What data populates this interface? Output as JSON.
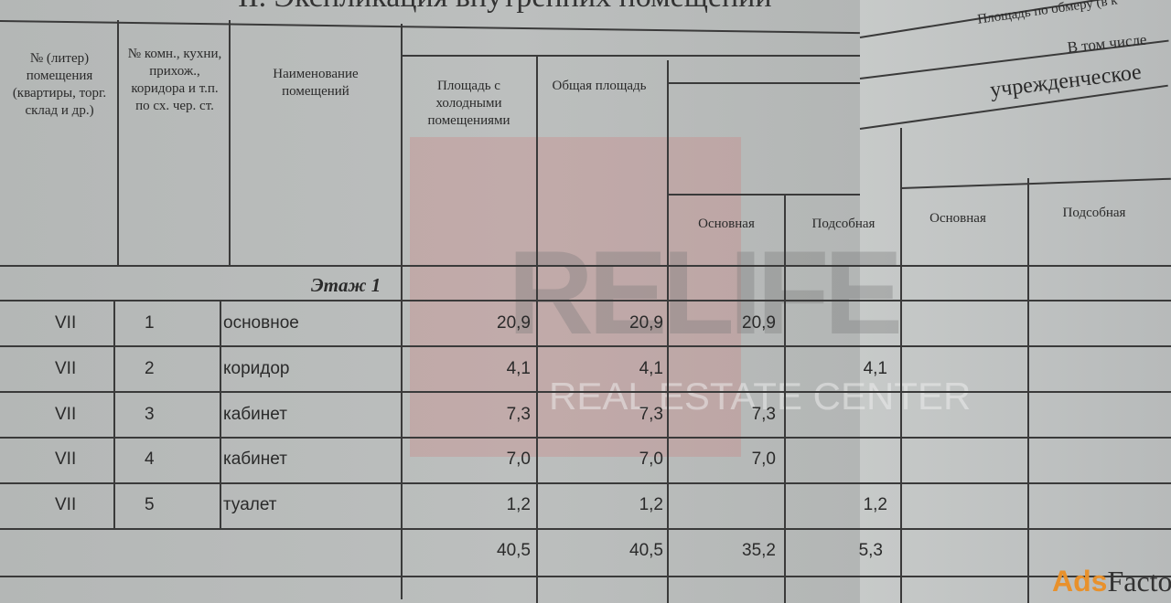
{
  "title": "II. Экспликация внутренних помещений",
  "headers": {
    "col1": "№ (литер) помещения (квартиры, торг. склад и др.)",
    "col2": "№ комн., кухни, прихож., коридора и т.п. по сх. чер. ст.",
    "col3": "Наименование помещений",
    "col4": "Площадь с холодными помещениями",
    "col5": "Общая площадь",
    "measured": "Площадь по обмеру (в к",
    "including": "В том числе",
    "institutional": "учрежденческое",
    "main1": "Основная",
    "aux1": "Подсобная",
    "main2": "Основная",
    "aux2": "Подсобная"
  },
  "floor_label": "Этаж 1",
  "rows": [
    {
      "lit": "VII",
      "no": "1",
      "name": "основное",
      "cold": "20,9",
      "total": "20,9",
      "main": "20,9",
      "aux": ""
    },
    {
      "lit": "VII",
      "no": "2",
      "name": "коридор",
      "cold": "4,1",
      "total": "4,1",
      "main": "",
      "aux": "4,1"
    },
    {
      "lit": "VII",
      "no": "3",
      "name": "кабинет",
      "cold": "7,3",
      "total": "7,3",
      "main": "7,3",
      "aux": ""
    },
    {
      "lit": "VII",
      "no": "4",
      "name": "кабинет",
      "cold": "7,0",
      "total": "7,0",
      "main": "7,0",
      "aux": ""
    },
    {
      "lit": "VII",
      "no": "5",
      "name": "туалет",
      "cold": "1,2",
      "total": "1,2",
      "main": "",
      "aux": "1,2"
    }
  ],
  "totals": {
    "cold": "40,5",
    "total": "40,5",
    "main": "35,2",
    "aux": "5,3"
  },
  "watermark": {
    "logo": "RELIFE",
    "sub": "REAL ESTATE CENTER",
    "color": "#d27878"
  },
  "source_watermark": {
    "a": "Ads",
    "b": "Factory",
    "accent": "#e8912c"
  }
}
